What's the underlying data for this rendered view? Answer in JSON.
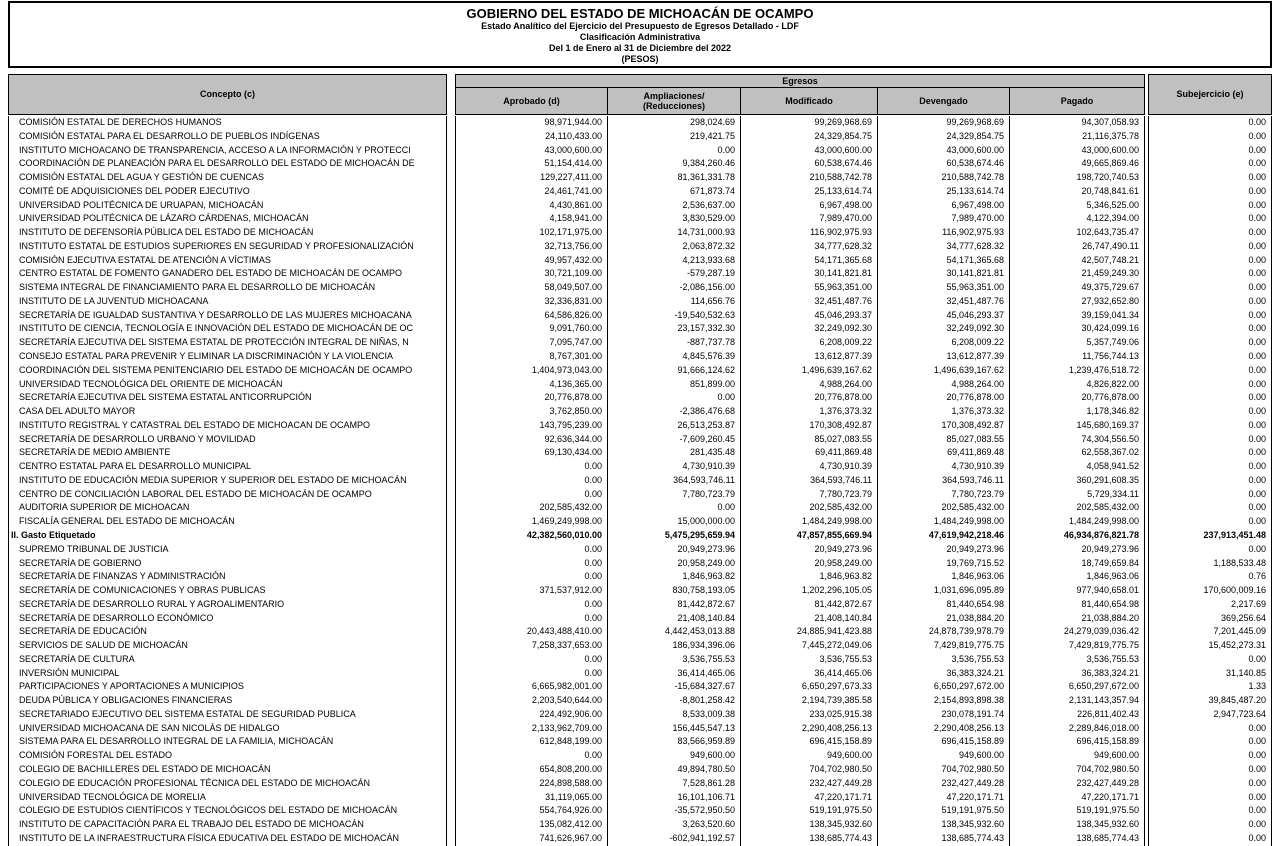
{
  "title": {
    "lines": [
      "GOBIERNO DEL ESTADO DE MICHOACÁN DE OCAMPO",
      "Estado Analítico del Ejercicio del Presupuesto de Egresos Detallado - LDF",
      "Clasificación Administrativa",
      "Del 1 de Enero al 31 de Diciembre del 2022",
      "(PESOS)"
    ]
  },
  "table": {
    "concepto_header": "Concepto (c)",
    "egresos_header": "Egresos",
    "columns": [
      "Aprobado (d)",
      "Ampliaciones/\n(Reducciones)",
      "Modificado",
      "Devengado",
      "Pagado"
    ],
    "subejercicio_header": "Subejercicio (e)",
    "rows": [
      {
        "concepto": "COMISIÓN ESTATAL DE DERECHOS HUMANOS",
        "bold": false,
        "values": [
          "98,971,944.00",
          "298,024.69",
          "99,269,968.69",
          "99,269,968.69",
          "94,307,058.93",
          "0.00"
        ]
      },
      {
        "concepto": "COMISIÓN ESTATAL PARA EL DESARROLLO DE PUEBLOS INDÍGENAS",
        "bold": false,
        "values": [
          "24,110,433.00",
          "219,421.75",
          "24,329,854.75",
          "24,329,854.75",
          "21,116,375.78",
          "0.00"
        ]
      },
      {
        "concepto": "INSTITUTO MICHOACANO DE TRANSPARENCIA, ACCESO A LA INFORMACIÓN Y PROTECCI",
        "bold": false,
        "values": [
          "43,000,600.00",
          "0.00",
          "43,000,600.00",
          "43,000,600.00",
          "43,000,600.00",
          "0.00"
        ]
      },
      {
        "concepto": "COORDINACIÓN DE PLANEACIÓN PARA EL DESARROLLO DEL ESTADO DE MICHOACÁN DE",
        "bold": false,
        "values": [
          "51,154,414.00",
          "9,384,260.46",
          "60,538,674.46",
          "60,538,674.46",
          "49,665,869.46",
          "0.00"
        ]
      },
      {
        "concepto": "COMISIÓN ESTATAL DEL AGUA Y GESTIÓN DE CUENCAS",
        "bold": false,
        "values": [
          "129,227,411.00",
          "81,361,331.78",
          "210,588,742.78",
          "210,588,742.78",
          "198,720,740.53",
          "0.00"
        ]
      },
      {
        "concepto": "COMITÉ DE ADQUISICIONES DEL PODER EJECUTIVO",
        "bold": false,
        "values": [
          "24,461,741.00",
          "671,873.74",
          "25,133,614.74",
          "25,133,614.74",
          "20,748,841.61",
          "0.00"
        ]
      },
      {
        "concepto": "UNIVERSIDAD POLITÉCNICA DE URUAPAN, MICHOACÁN",
        "bold": false,
        "values": [
          "4,430,861.00",
          "2,536,637.00",
          "6,967,498.00",
          "6,967,498.00",
          "5,346,525.00",
          "0.00"
        ]
      },
      {
        "concepto": "UNIVERSIDAD POLITÉCNICA DE LÁZARO CÁRDENAS, MICHOACÁN",
        "bold": false,
        "values": [
          "4,158,941.00",
          "3,830,529.00",
          "7,989,470.00",
          "7,989,470.00",
          "4,122,394.00",
          "0.00"
        ]
      },
      {
        "concepto": "INSTITUTO DE DEFENSORÍA PÚBLICA DEL ESTADO DE MICHOACÁN",
        "bold": false,
        "values": [
          "102,171,975.00",
          "14,731,000.93",
          "116,902,975.93",
          "116,902,975.93",
          "102,643,735.47",
          "0.00"
        ]
      },
      {
        "concepto": "INSTITUTO ESTATAL DE ESTUDIOS SUPERIORES EN SEGURIDAD Y PROFESIONALIZACIÓN",
        "bold": false,
        "values": [
          "32,713,756.00",
          "2,063,872.32",
          "34,777,628.32",
          "34,777,628.32",
          "26,747,490.11",
          "0.00"
        ]
      },
      {
        "concepto": "COMISIÓN EJECUTIVA ESTATAL DE ATENCIÓN A VÍCTIMAS",
        "bold": false,
        "values": [
          "49,957,432.00",
          "4,213,933.68",
          "54,171,365.68",
          "54,171,365.68",
          "42,507,748.21",
          "0.00"
        ]
      },
      {
        "concepto": "CENTRO ESTATAL DE FOMENTO GANADERO DEL ESTADO DE MICHOACÁN DE OCAMPO",
        "bold": false,
        "values": [
          "30,721,109.00",
          "-579,287.19",
          "30,141,821.81",
          "30,141,821.81",
          "21,459,249.30",
          "0.00"
        ]
      },
      {
        "concepto": "SISTEMA INTEGRAL DE FINANCIAMIENTO PARA EL DESARROLLO DE  MICHOACÁN",
        "bold": false,
        "values": [
          "58,049,507.00",
          "-2,086,156.00",
          "55,963,351.00",
          "55,963,351.00",
          "49,375,729.67",
          "0.00"
        ]
      },
      {
        "concepto": "INSTITUTO DE LA JUVENTUD MICHOACANA",
        "bold": false,
        "values": [
          "32,336,831.00",
          "114,656.76",
          "32,451,487.76",
          "32,451,487.76",
          "27,932,652.80",
          "0.00"
        ]
      },
      {
        "concepto": "SECRETARÍA DE IGUALDAD SUSTANTIVA Y DESARROLLO DE LAS MUJERES MICHOACANA",
        "bold": false,
        "values": [
          "64,586,826.00",
          "-19,540,532.63",
          "45,046,293.37",
          "45,046,293.37",
          "39,159,041.34",
          "0.00"
        ]
      },
      {
        "concepto": "INSTITUTO DE CIENCIA, TECNOLOGÍA E INNOVACIÓN DEL ESTADO DE MICHOACÁN DE OC",
        "bold": false,
        "values": [
          "9,091,760.00",
          "23,157,332.30",
          "32,249,092.30",
          "32,249,092.30",
          "30,424,099.16",
          "0.00"
        ]
      },
      {
        "concepto": "SECRETARÍA EJECUTIVA DEL SISTEMA ESTATAL DE PROTECCIÓN INTEGRAL DE NIÑAS, N",
        "bold": false,
        "values": [
          "7,095,747.00",
          "-887,737.78",
          "6,208,009.22",
          "6,208,009.22",
          "5,357,749.06",
          "0.00"
        ]
      },
      {
        "concepto": "CONSEJO ESTATAL PARA PREVENIR Y ELIMINAR LA DISCRIMINACIÓN Y LA VIOLENCIA",
        "bold": false,
        "values": [
          "8,767,301.00",
          "4,845,576.39",
          "13,612,877.39",
          "13,612,877.39",
          "11,756,744.13",
          "0.00"
        ]
      },
      {
        "concepto": "COORDINACIÓN DEL SISTEMA PENITENCIARIO DEL ESTADO DE MICHOACÁN DE OCAMPO",
        "bold": false,
        "values": [
          "1,404,973,043.00",
          "91,666,124.62",
          "1,496,639,167.62",
          "1,496,639,167.62",
          "1,239,476,518.72",
          "0.00"
        ]
      },
      {
        "concepto": "UNIVERSIDAD TECNOLÓGICA DEL ORIENTE DE MICHOACÁN",
        "bold": false,
        "values": [
          "4,136,365.00",
          "851,899.00",
          "4,988,264.00",
          "4,988,264.00",
          "4,826,822.00",
          "0.00"
        ]
      },
      {
        "concepto": "SECRETARÍA EJECUTIVA DEL SISTEMA ESTATAL ANTICORRUPCIÓN",
        "bold": false,
        "values": [
          "20,776,878.00",
          "0.00",
          "20,776,878.00",
          "20,776,878.00",
          "20,776,878.00",
          "0.00"
        ]
      },
      {
        "concepto": "CASA DEL ADULTO MAYOR",
        "bold": false,
        "values": [
          "3,762,850.00",
          "-2,386,476.68",
          "1,376,373.32",
          "1,376,373.32",
          "1,178,346.82",
          "0.00"
        ]
      },
      {
        "concepto": "INSTITUTO REGISTRAL Y CATASTRAL DEL ESTADO DE MICHOACAN DE OCAMPO",
        "bold": false,
        "values": [
          "143,795,239.00",
          "26,513,253.87",
          "170,308,492.87",
          "170,308,492.87",
          "145,680,169.37",
          "0.00"
        ]
      },
      {
        "concepto": "SECRETARÍA DE DESARROLLO URBANO Y MOVILIDAD",
        "bold": false,
        "values": [
          "92,636,344.00",
          "-7,609,260.45",
          "85,027,083.55",
          "85,027,083.55",
          "74,304,556.50",
          "0.00"
        ]
      },
      {
        "concepto": "SECRETARÍA DE MEDIO AMBIENTE",
        "bold": false,
        "values": [
          "69,130,434.00",
          "281,435.48",
          "69,411,869.48",
          "69,411,869.48",
          "62,558,367.02",
          "0.00"
        ]
      },
      {
        "concepto": "CENTRO ESTATAL PARA EL DESARROLLO MUNICIPAL",
        "bold": false,
        "values": [
          "0.00",
          "4,730,910.39",
          "4,730,910.39",
          "4,730,910.39",
          "4,058,941.52",
          "0.00"
        ]
      },
      {
        "concepto": "INSTITUTO DE EDUCACIÓN MEDIA SUPERIOR Y SUPERIOR DEL ESTADO DE MICHOACÁN",
        "bold": false,
        "values": [
          "0.00",
          "364,593,746.11",
          "364,593,746.11",
          "364,593,746.11",
          "360,291,608.35",
          "0.00"
        ]
      },
      {
        "concepto": "CENTRO DE CONCILIACIÓN LABORAL DEL ESTADO DE MICHOACÁN DE OCAMPO",
        "bold": false,
        "values": [
          "0.00",
          "7,780,723.79",
          "7,780,723.79",
          "7,780,723.79",
          "5,729,334.11",
          "0.00"
        ]
      },
      {
        "concepto": "AUDITORIA SUPERIOR DE MICHOACAN",
        "bold": false,
        "values": [
          "202,585,432.00",
          "0.00",
          "202,585,432.00",
          "202,585,432.00",
          "202,585,432.00",
          "0.00"
        ]
      },
      {
        "concepto": "FISCALÍA GENERAL DEL ESTADO DE MICHOACÁN",
        "bold": false,
        "values": [
          "1,469,249,998.00",
          "15,000,000.00",
          "1,484,249,998.00",
          "1,484,249,998.00",
          "1,484,249,998.00",
          "0.00"
        ]
      },
      {
        "concepto": "II. Gasto Etiquetado",
        "bold": true,
        "values": [
          "42,382,560,010.00",
          "5,475,295,659.94",
          "47,857,855,669.94",
          "47,619,942,218.46",
          "46,934,876,821.78",
          "237,913,451.48"
        ]
      },
      {
        "concepto": "SUPREMO TRIBUNAL DE JUSTICIA",
        "bold": false,
        "values": [
          "0.00",
          "20,949,273.96",
          "20,949,273.96",
          "20,949,273.96",
          "20,949,273.96",
          "0.00"
        ]
      },
      {
        "concepto": "SECRETARÍA DE GOBIERNO",
        "bold": false,
        "values": [
          "0.00",
          "20,958,249.00",
          "20,958,249.00",
          "19,769,715.52",
          "18,749,659.84",
          "1,188,533.48"
        ]
      },
      {
        "concepto": "SECRETARÍA DE FINANZAS Y ADMINISTRACIÓN",
        "bold": false,
        "values": [
          "0.00",
          "1,846,963.82",
          "1,846,963.82",
          "1,846,963.06",
          "1,846,963.06",
          "0.76"
        ]
      },
      {
        "concepto": "SECRETARÍA DE COMUNICACIONES Y OBRAS PUBLICAS",
        "bold": false,
        "values": [
          "371,537,912.00",
          "830,758,193.05",
          "1,202,296,105.05",
          "1,031,696,095.89",
          "977,940,658.01",
          "170,600,009.16"
        ]
      },
      {
        "concepto": "SECRETARÍA DE DESARROLLO RURAL Y AGROALIMENTARIO",
        "bold": false,
        "values": [
          "0.00",
          "81,442,872.67",
          "81,442,872.67",
          "81,440,654.98",
          "81,440,654.98",
          "2,217.69"
        ]
      },
      {
        "concepto": "SECRETARÍA DE DESARROLLO ECONÓMICO",
        "bold": false,
        "values": [
          "0.00",
          "21,408,140.84",
          "21,408,140.84",
          "21,038,884.20",
          "21,038,884.20",
          "369,256.64"
        ]
      },
      {
        "concepto": "SECRETARÍA DE EDUCACIÓN",
        "bold": false,
        "values": [
          "20,443,488,410.00",
          "4,442,453,013.88",
          "24,885,941,423.88",
          "24,878,739,978.79",
          "24,279,039,036.42",
          "7,201,445.09"
        ]
      },
      {
        "concepto": "SERVICIOS DE SALUD DE MICHOACÁN",
        "bold": false,
        "values": [
          "7,258,337,653.00",
          "186,934,396.06",
          "7,445,272,049.06",
          "7,429,819,775.75",
          "7,429,819,775.75",
          "15,452,273.31"
        ]
      },
      {
        "concepto": "SECRETARÍA DE CULTURA",
        "bold": false,
        "values": [
          "0.00",
          "3,536,755.53",
          "3,536,755.53",
          "3,536,755.53",
          "3,536,755.53",
          "0.00"
        ]
      },
      {
        "concepto": "INVERSIÓN MUNICIPAL",
        "bold": false,
        "values": [
          "0.00",
          "36,414,465.06",
          "36,414,465.06",
          "36,383,324.21",
          "36,383,324.21",
          "31,140.85"
        ]
      },
      {
        "concepto": "PARTICIPACIONES Y APORTACIONES A MUNICIPIOS",
        "bold": false,
        "values": [
          "6,665,982,001.00",
          "-15,684,327.67",
          "6,650,297,673.33",
          "6,650,297,672.00",
          "6,650,297,672.00",
          "1.33"
        ]
      },
      {
        "concepto": "DEUDA PÚBLICA Y OBLIGACIONES FINANCIERAS",
        "bold": false,
        "values": [
          "2,203,540,644.00",
          "-8,801,258.42",
          "2,194,739,385.58",
          "2,154,893,898.38",
          "2,131,143,357.94",
          "39,845,487.20"
        ]
      },
      {
        "concepto": "SECRETARIADO EJECUTIVO DEL SISTEMA ESTATAL DE SEGURIDAD PUBLICA",
        "bold": false,
        "values": [
          "224,492,906.00",
          "8,533,009.38",
          "233,025,915.38",
          "230,078,191.74",
          "226,811,402.43",
          "2,947,723.64"
        ]
      },
      {
        "concepto": "UNIVERSIDAD MICHOACANA DE SAN NICOLÁS DE HIDALGO",
        "bold": false,
        "values": [
          "2,133,962,709.00",
          "156,445,547.13",
          "2,290,408,256.13",
          "2,290,408,256.13",
          "2,289,846,018.00",
          "0.00"
        ]
      },
      {
        "concepto": "SISTEMA PARA EL DESARROLLO INTEGRAL DE LA FAMILIA, MICHOACÁN",
        "bold": false,
        "values": [
          "612,848,199.00",
          "83,566,959.89",
          "696,415,158.89",
          "696,415,158.89",
          "696,415,158.89",
          "0.00"
        ]
      },
      {
        "concepto": "COMISIÓN FORESTAL DEL ESTADO",
        "bold": false,
        "values": [
          "0.00",
          "949,600.00",
          "949,600.00",
          "949,600.00",
          "949,600.00",
          "0.00"
        ]
      },
      {
        "concepto": "COLEGIO DE BACHILLERES DEL ESTADO DE MICHOACÁN",
        "bold": false,
        "values": [
          "654,808,200.00",
          "49,894,780.50",
          "704,702,980.50",
          "704,702,980.50",
          "704,702,980.50",
          "0.00"
        ]
      },
      {
        "concepto": "COLEGIO DE EDUCACIÓN PROFESIONAL TÉCNICA DEL ESTADO DE MICHOACÁN",
        "bold": false,
        "values": [
          "224,898,588.00",
          "7,528,861.28",
          "232,427,449.28",
          "232,427,449.28",
          "232,427,449.28",
          "0.00"
        ]
      },
      {
        "concepto": "UNIVERSIDAD TECNOLÓGICA DE MORELIA",
        "bold": false,
        "values": [
          "31,119,065.00",
          "16,101,106.71",
          "47,220,171.71",
          "47,220,171.71",
          "47,220,171.71",
          "0.00"
        ]
      },
      {
        "concepto": "COLEGIO DE ESTUDIOS CIENTÍFICOS Y TECNOLÓGICOS DEL ESTADO DE MICHOACÁN",
        "bold": false,
        "values": [
          "554,764,926.00",
          "-35,572,950.50",
          "519,191,975.50",
          "519,191,975.50",
          "519,191,975.50",
          "0.00"
        ]
      },
      {
        "concepto": "INSTITUTO DE CAPACITACIÓN PARA EL TRABAJO DEL ESTADO DE MICHOACÁN",
        "bold": false,
        "values": [
          "135,082,412.00",
          "3,263,520.60",
          "138,345,932.60",
          "138,345,932.60",
          "138,345,932.60",
          "0.00"
        ]
      },
      {
        "concepto": "INSTITUTO DE LA INFRAESTRUCTURA FÍSICA EDUCATIVA DEL ESTADO DE MICHOACÁN",
        "bold": false,
        "values": [
          "741,626,967.00",
          "-602,941,192.57",
          "138,685,774.43",
          "138,685,774.43",
          "138,685,774.43",
          "0.00"
        ]
      }
    ]
  }
}
